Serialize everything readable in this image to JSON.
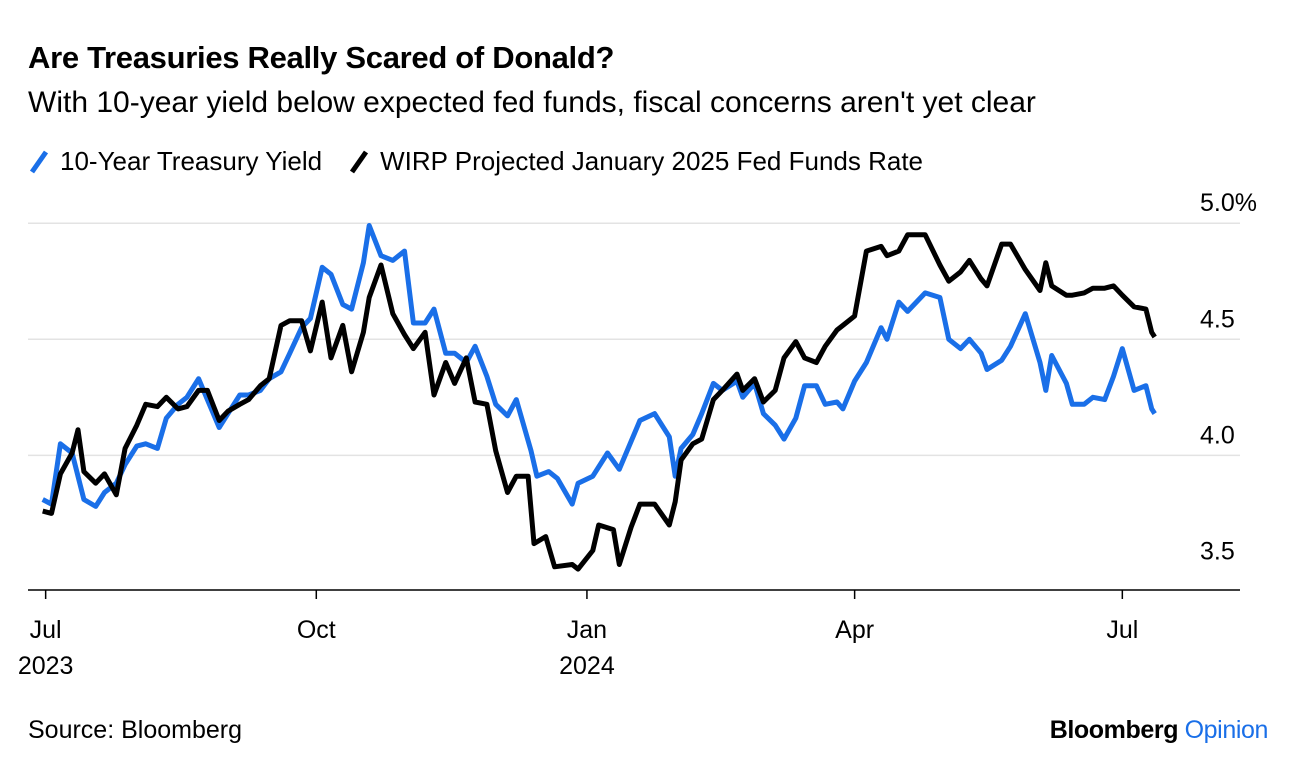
{
  "chart_data": {
    "type": "line",
    "title": "Are Treasuries Really Scared of Donald?",
    "subtitle": "With 10-year yield below expected fed funds, fiscal concerns aren't yet clear",
    "xlabel": "",
    "ylabel": "",
    "grid": true,
    "legend_position": "top-left",
    "xlim": [
      "2023-06-25",
      "2024-08-10"
    ],
    "ylim": [
      3.42,
      5.1
    ],
    "y_ticks": [
      {
        "value": 3.5,
        "label": "3.5"
      },
      {
        "value": 4.0,
        "label": "4.0"
      },
      {
        "value": 4.5,
        "label": "4.5"
      },
      {
        "value": 5.0,
        "label": "5.0%"
      }
    ],
    "x_ticks": [
      {
        "date": "2023-07-01",
        "label": "Jul",
        "sublabel": "2023"
      },
      {
        "date": "2023-10-01",
        "label": "Oct",
        "sublabel": ""
      },
      {
        "date": "2024-01-01",
        "label": "Jan",
        "sublabel": "2024"
      },
      {
        "date": "2024-04-01",
        "label": "Apr",
        "sublabel": ""
      },
      {
        "date": "2024-07-01",
        "label": "Jul",
        "sublabel": ""
      }
    ],
    "series": [
      {
        "name": "10-Year Treasury Yield",
        "color": "#1a6fe8",
        "points": [
          [
            "2023-06-30",
            3.81
          ],
          [
            "2023-07-03",
            3.79
          ],
          [
            "2023-07-06",
            4.05
          ],
          [
            "2023-07-10",
            4.01
          ],
          [
            "2023-07-14",
            3.81
          ],
          [
            "2023-07-18",
            3.78
          ],
          [
            "2023-07-21",
            3.84
          ],
          [
            "2023-07-25",
            3.88
          ],
          [
            "2023-07-28",
            3.96
          ],
          [
            "2023-08-01",
            4.04
          ],
          [
            "2023-08-04",
            4.05
          ],
          [
            "2023-08-08",
            4.03
          ],
          [
            "2023-08-11",
            4.16
          ],
          [
            "2023-08-15",
            4.22
          ],
          [
            "2023-08-18",
            4.25
          ],
          [
            "2023-08-22",
            4.33
          ],
          [
            "2023-08-25",
            4.24
          ],
          [
            "2023-08-29",
            4.12
          ],
          [
            "2023-09-01",
            4.18
          ],
          [
            "2023-09-05",
            4.26
          ],
          [
            "2023-09-08",
            4.26
          ],
          [
            "2023-09-12",
            4.28
          ],
          [
            "2023-09-15",
            4.33
          ],
          [
            "2023-09-19",
            4.36
          ],
          [
            "2023-09-22",
            4.44
          ],
          [
            "2023-09-26",
            4.55
          ],
          [
            "2023-09-29",
            4.59
          ],
          [
            "2023-10-03",
            4.81
          ],
          [
            "2023-10-06",
            4.78
          ],
          [
            "2023-10-10",
            4.65
          ],
          [
            "2023-10-13",
            4.63
          ],
          [
            "2023-10-17",
            4.83
          ],
          [
            "2023-10-19",
            4.99
          ],
          [
            "2023-10-23",
            4.86
          ],
          [
            "2023-10-27",
            4.84
          ],
          [
            "2023-10-31",
            4.88
          ],
          [
            "2023-11-03",
            4.57
          ],
          [
            "2023-11-07",
            4.57
          ],
          [
            "2023-11-10",
            4.63
          ],
          [
            "2023-11-14",
            4.44
          ],
          [
            "2023-11-17",
            4.44
          ],
          [
            "2023-11-21",
            4.4
          ],
          [
            "2023-11-24",
            4.47
          ],
          [
            "2023-11-28",
            4.34
          ],
          [
            "2023-12-01",
            4.22
          ],
          [
            "2023-12-05",
            4.17
          ],
          [
            "2023-12-08",
            4.24
          ],
          [
            "2023-12-13",
            4.02
          ],
          [
            "2023-12-15",
            3.91
          ],
          [
            "2023-12-19",
            3.93
          ],
          [
            "2023-12-22",
            3.9
          ],
          [
            "2023-12-27",
            3.79
          ],
          [
            "2023-12-29",
            3.88
          ],
          [
            "2024-01-03",
            3.91
          ],
          [
            "2024-01-08",
            4.01
          ],
          [
            "2024-01-12",
            3.94
          ],
          [
            "2024-01-16",
            4.06
          ],
          [
            "2024-01-19",
            4.15
          ],
          [
            "2024-01-24",
            4.18
          ],
          [
            "2024-01-29",
            4.08
          ],
          [
            "2024-01-31",
            3.91
          ],
          [
            "2024-02-02",
            4.03
          ],
          [
            "2024-02-06",
            4.09
          ],
          [
            "2024-02-09",
            4.18
          ],
          [
            "2024-02-13",
            4.31
          ],
          [
            "2024-02-16",
            4.28
          ],
          [
            "2024-02-21",
            4.32
          ],
          [
            "2024-02-23",
            4.25
          ],
          [
            "2024-02-27",
            4.31
          ],
          [
            "2024-03-01",
            4.18
          ],
          [
            "2024-03-05",
            4.13
          ],
          [
            "2024-03-08",
            4.07
          ],
          [
            "2024-03-12",
            4.16
          ],
          [
            "2024-03-15",
            4.3
          ],
          [
            "2024-03-19",
            4.3
          ],
          [
            "2024-03-22",
            4.22
          ],
          [
            "2024-03-26",
            4.23
          ],
          [
            "2024-03-28",
            4.2
          ],
          [
            "2024-04-01",
            4.32
          ],
          [
            "2024-04-05",
            4.4
          ],
          [
            "2024-04-10",
            4.55
          ],
          [
            "2024-04-12",
            4.5
          ],
          [
            "2024-04-16",
            4.66
          ],
          [
            "2024-04-19",
            4.62
          ],
          [
            "2024-04-25",
            4.7
          ],
          [
            "2024-04-30",
            4.68
          ],
          [
            "2024-05-03",
            4.5
          ],
          [
            "2024-05-07",
            4.46
          ],
          [
            "2024-05-10",
            4.5
          ],
          [
            "2024-05-14",
            4.44
          ],
          [
            "2024-05-16",
            4.37
          ],
          [
            "2024-05-21",
            4.41
          ],
          [
            "2024-05-24",
            4.47
          ],
          [
            "2024-05-29",
            4.61
          ],
          [
            "2024-06-03",
            4.4
          ],
          [
            "2024-06-05",
            4.28
          ],
          [
            "2024-06-07",
            4.43
          ],
          [
            "2024-06-12",
            4.31
          ],
          [
            "2024-06-14",
            4.22
          ],
          [
            "2024-06-18",
            4.22
          ],
          [
            "2024-06-21",
            4.25
          ],
          [
            "2024-06-25",
            4.24
          ],
          [
            "2024-06-28",
            4.34
          ],
          [
            "2024-07-01",
            4.46
          ],
          [
            "2024-07-05",
            4.28
          ],
          [
            "2024-07-09",
            4.3
          ],
          [
            "2024-07-11",
            4.2
          ],
          [
            "2024-07-12",
            4.18
          ]
        ]
      },
      {
        "name": "WIRP Projected January 2025 Fed Funds Rate",
        "color": "#000000",
        "points": [
          [
            "2023-06-30",
            3.76
          ],
          [
            "2023-07-03",
            3.75
          ],
          [
            "2023-07-06",
            3.92
          ],
          [
            "2023-07-10",
            4.01
          ],
          [
            "2023-07-12",
            4.11
          ],
          [
            "2023-07-14",
            3.93
          ],
          [
            "2023-07-18",
            3.88
          ],
          [
            "2023-07-21",
            3.92
          ],
          [
            "2023-07-25",
            3.83
          ],
          [
            "2023-07-28",
            4.03
          ],
          [
            "2023-08-01",
            4.13
          ],
          [
            "2023-08-04",
            4.22
          ],
          [
            "2023-08-08",
            4.21
          ],
          [
            "2023-08-11",
            4.25
          ],
          [
            "2023-08-15",
            4.2
          ],
          [
            "2023-08-18",
            4.21
          ],
          [
            "2023-08-22",
            4.28
          ],
          [
            "2023-08-25",
            4.28
          ],
          [
            "2023-08-29",
            4.15
          ],
          [
            "2023-09-01",
            4.19
          ],
          [
            "2023-09-05",
            4.22
          ],
          [
            "2023-09-08",
            4.24
          ],
          [
            "2023-09-12",
            4.3
          ],
          [
            "2023-09-15",
            4.33
          ],
          [
            "2023-09-19",
            4.56
          ],
          [
            "2023-09-22",
            4.58
          ],
          [
            "2023-09-26",
            4.58
          ],
          [
            "2023-09-29",
            4.45
          ],
          [
            "2023-10-03",
            4.66
          ],
          [
            "2023-10-06",
            4.42
          ],
          [
            "2023-10-10",
            4.56
          ],
          [
            "2023-10-13",
            4.36
          ],
          [
            "2023-10-17",
            4.53
          ],
          [
            "2023-10-19",
            4.68
          ],
          [
            "2023-10-23",
            4.82
          ],
          [
            "2023-10-27",
            4.61
          ],
          [
            "2023-10-31",
            4.52
          ],
          [
            "2023-11-03",
            4.46
          ],
          [
            "2023-11-07",
            4.53
          ],
          [
            "2023-11-10",
            4.26
          ],
          [
            "2023-11-14",
            4.4
          ],
          [
            "2023-11-17",
            4.31
          ],
          [
            "2023-11-21",
            4.42
          ],
          [
            "2023-11-24",
            4.23
          ],
          [
            "2023-11-28",
            4.22
          ],
          [
            "2023-12-01",
            4.02
          ],
          [
            "2023-12-05",
            3.84
          ],
          [
            "2023-12-08",
            3.91
          ],
          [
            "2023-12-12",
            3.91
          ],
          [
            "2023-12-14",
            3.62
          ],
          [
            "2023-12-18",
            3.65
          ],
          [
            "2023-12-21",
            3.52
          ],
          [
            "2023-12-27",
            3.53
          ],
          [
            "2023-12-29",
            3.51
          ],
          [
            "2024-01-03",
            3.59
          ],
          [
            "2024-01-05",
            3.7
          ],
          [
            "2024-01-10",
            3.68
          ],
          [
            "2024-01-12",
            3.53
          ],
          [
            "2024-01-16",
            3.69
          ],
          [
            "2024-01-19",
            3.79
          ],
          [
            "2024-01-24",
            3.79
          ],
          [
            "2024-01-29",
            3.7
          ],
          [
            "2024-01-31",
            3.8
          ],
          [
            "2024-02-02",
            3.98
          ],
          [
            "2024-02-06",
            4.05
          ],
          [
            "2024-02-09",
            4.07
          ],
          [
            "2024-02-13",
            4.24
          ],
          [
            "2024-02-16",
            4.28
          ],
          [
            "2024-02-21",
            4.35
          ],
          [
            "2024-02-23",
            4.28
          ],
          [
            "2024-02-27",
            4.33
          ],
          [
            "2024-03-01",
            4.23
          ],
          [
            "2024-03-05",
            4.28
          ],
          [
            "2024-03-08",
            4.42
          ],
          [
            "2024-03-12",
            4.49
          ],
          [
            "2024-03-15",
            4.42
          ],
          [
            "2024-03-19",
            4.4
          ],
          [
            "2024-03-22",
            4.47
          ],
          [
            "2024-03-26",
            4.54
          ],
          [
            "2024-03-28",
            4.56
          ],
          [
            "2024-04-01",
            4.6
          ],
          [
            "2024-04-05",
            4.88
          ],
          [
            "2024-04-10",
            4.9
          ],
          [
            "2024-04-12",
            4.86
          ],
          [
            "2024-04-16",
            4.88
          ],
          [
            "2024-04-19",
            4.95
          ],
          [
            "2024-04-25",
            4.95
          ],
          [
            "2024-04-30",
            4.82
          ],
          [
            "2024-05-03",
            4.75
          ],
          [
            "2024-05-07",
            4.79
          ],
          [
            "2024-05-10",
            4.84
          ],
          [
            "2024-05-14",
            4.76
          ],
          [
            "2024-05-16",
            4.73
          ],
          [
            "2024-05-21",
            4.91
          ],
          [
            "2024-05-24",
            4.91
          ],
          [
            "2024-05-29",
            4.8
          ],
          [
            "2024-06-03",
            4.71
          ],
          [
            "2024-06-05",
            4.83
          ],
          [
            "2024-06-07",
            4.73
          ],
          [
            "2024-06-12",
            4.69
          ],
          [
            "2024-06-14",
            4.69
          ],
          [
            "2024-06-18",
            4.7
          ],
          [
            "2024-06-21",
            4.72
          ],
          [
            "2024-06-25",
            4.72
          ],
          [
            "2024-06-28",
            4.73
          ],
          [
            "2024-07-01",
            4.69
          ],
          [
            "2024-07-05",
            4.64
          ],
          [
            "2024-07-09",
            4.63
          ],
          [
            "2024-07-11",
            4.53
          ],
          [
            "2024-07-12",
            4.51
          ]
        ]
      }
    ]
  },
  "footer": {
    "source": "Source: Bloomberg",
    "brand_part1": "Bloomberg",
    "brand_part2": "Opinion"
  }
}
